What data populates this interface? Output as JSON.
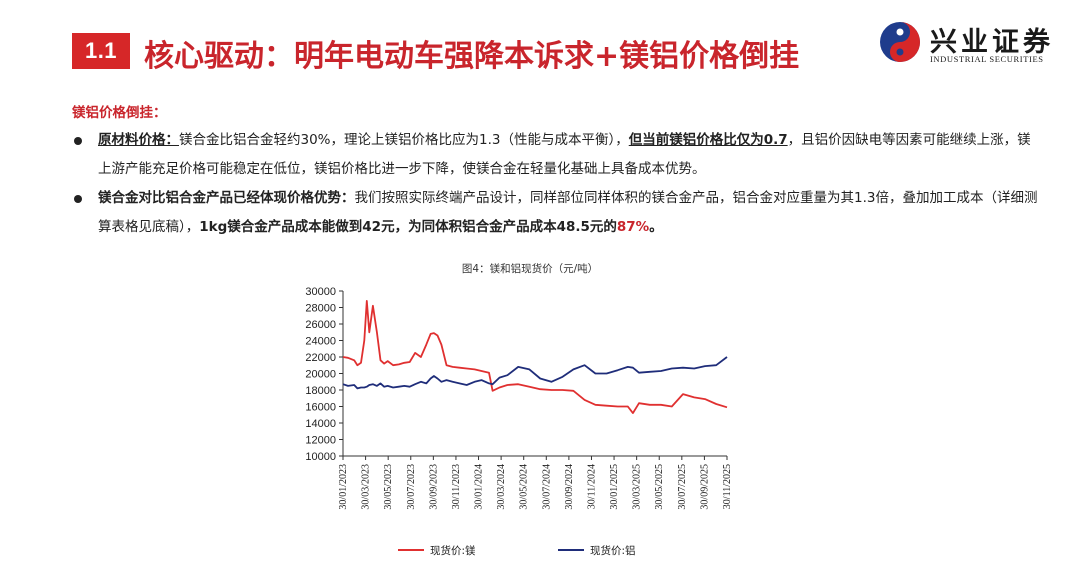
{
  "header": {
    "section_number": "1.1",
    "title": "核心驱动：明年电动车强降本诉求+镁铝价格倒挂",
    "logo": {
      "name_cn": "兴业证券",
      "name_en": "INDUSTRIAL SECURITIES"
    }
  },
  "content": {
    "subheading": "镁铝价格倒挂：",
    "bullet1": {
      "label": "原材料价格：",
      "text_a": "镁合金比铝合金轻约30%，理论上镁铝价格比应为1.3（性能与成本平衡），",
      "emph": "但当前镁铝价格比仅为0.7",
      "text_b": "，且铝价因缺电等因素可能继续上涨，镁上游产能充足价格可能稳定在低位，镁铝价格比进一步下降，使镁合金在轻量化基础上具备成本优势。"
    },
    "bullet2": {
      "label": "镁合金对比铝合金产品已经体现价格优势：",
      "text_a": "我们按照实际终端产品设计，同样部位同样体积的镁合金产品，铝合金对应重量为其1.3倍，叠加加工成本（详细测算表格见底稿），",
      "emph_a": "1kg镁合金产品成本能做到42元，为同体积铝合金产品成本48.5元的",
      "emph_b": "87%",
      "tail": "。"
    }
  },
  "chart_data": {
    "type": "line",
    "title": "图4：镁和铝现货价（元/吨）",
    "xlabel": "",
    "ylabel": "",
    "ylim": [
      10000,
      30000
    ],
    "yticks": [
      "10000",
      "12000",
      "14000",
      "16000",
      "18000",
      "20000",
      "22000",
      "24000",
      "26000",
      "28000",
      "30000"
    ],
    "xticks": [
      "30/01/2023",
      "30/03/2023",
      "30/05/2023",
      "30/07/2023",
      "30/09/2023",
      "30/11/2023",
      "30/01/2024",
      "30/03/2024",
      "30/05/2024",
      "30/07/2024",
      "30/09/2024",
      "30/11/2024",
      "30/01/2025",
      "30/03/2025",
      "30/05/2025",
      "30/07/2025",
      "30/09/2025",
      "30/11/2025"
    ],
    "legend_position": "bottom",
    "grid": false,
    "x": [
      "2023-01-01",
      "2023-01-15",
      "2023-02-01",
      "2023-02-10",
      "2023-02-20",
      "2023-03-01",
      "2023-03-08",
      "2023-03-15",
      "2023-03-25",
      "2023-04-05",
      "2023-04-15",
      "2023-04-25",
      "2023-05-05",
      "2023-05-20",
      "2023-06-05",
      "2023-06-20",
      "2023-07-05",
      "2023-07-20",
      "2023-08-05",
      "2023-08-20",
      "2023-09-01",
      "2023-09-10",
      "2023-09-20",
      "2023-10-01",
      "2023-10-15",
      "2023-11-01",
      "2023-11-20",
      "2023-12-10",
      "2024-01-01",
      "2024-01-20",
      "2024-02-10",
      "2024-02-20",
      "2024-03-10",
      "2024-04-01",
      "2024-05-01",
      "2024-06-01",
      "2024-07-01",
      "2024-08-01",
      "2024-09-01",
      "2024-10-01",
      "2024-11-01",
      "2024-12-01",
      "2025-01-01",
      "2025-02-01",
      "2025-03-01",
      "2025-03-15",
      "2025-04-01",
      "2025-05-01",
      "2025-06-01",
      "2025-07-01",
      "2025-08-01",
      "2025-09-01",
      "2025-10-01",
      "2025-11-01",
      "2025-12-01"
    ],
    "series": [
      {
        "name": "现货价:镁",
        "color": "#e03030",
        "values": [
          22000,
          21900,
          21600,
          21000,
          21300,
          24000,
          28800,
          25000,
          28200,
          25000,
          21600,
          21200,
          21500,
          21000,
          21100,
          21300,
          21400,
          22500,
          22000,
          23500,
          24800,
          24900,
          24600,
          23500,
          21000,
          20800,
          20700,
          20600,
          20500,
          20300,
          20100,
          17900,
          18300,
          18600,
          18700,
          18400,
          18100,
          18000,
          18000,
          17900,
          16800,
          16200,
          16100,
          16000,
          16000,
          15200,
          16400,
          16200,
          16200,
          16000,
          17500,
          17100,
          16900,
          16300,
          15900
        ]
      },
      {
        "name": "现货价:铝",
        "color": "#1f2d7a",
        "values": [
          18700,
          18500,
          18600,
          18200,
          18300,
          18300,
          18400,
          18600,
          18700,
          18500,
          18800,
          18400,
          18500,
          18300,
          18400,
          18500,
          18400,
          18700,
          19000,
          18800,
          19400,
          19700,
          19400,
          19000,
          19200,
          19000,
          18800,
          18600,
          19000,
          19200,
          18800,
          18700,
          19500,
          19800,
          20800,
          20500,
          19400,
          19000,
          19600,
          20500,
          21000,
          20000,
          20000,
          20400,
          20800,
          20700,
          20100,
          20200,
          20300,
          20600,
          20700,
          20600,
          20900,
          21000,
          22000
        ]
      }
    ]
  }
}
